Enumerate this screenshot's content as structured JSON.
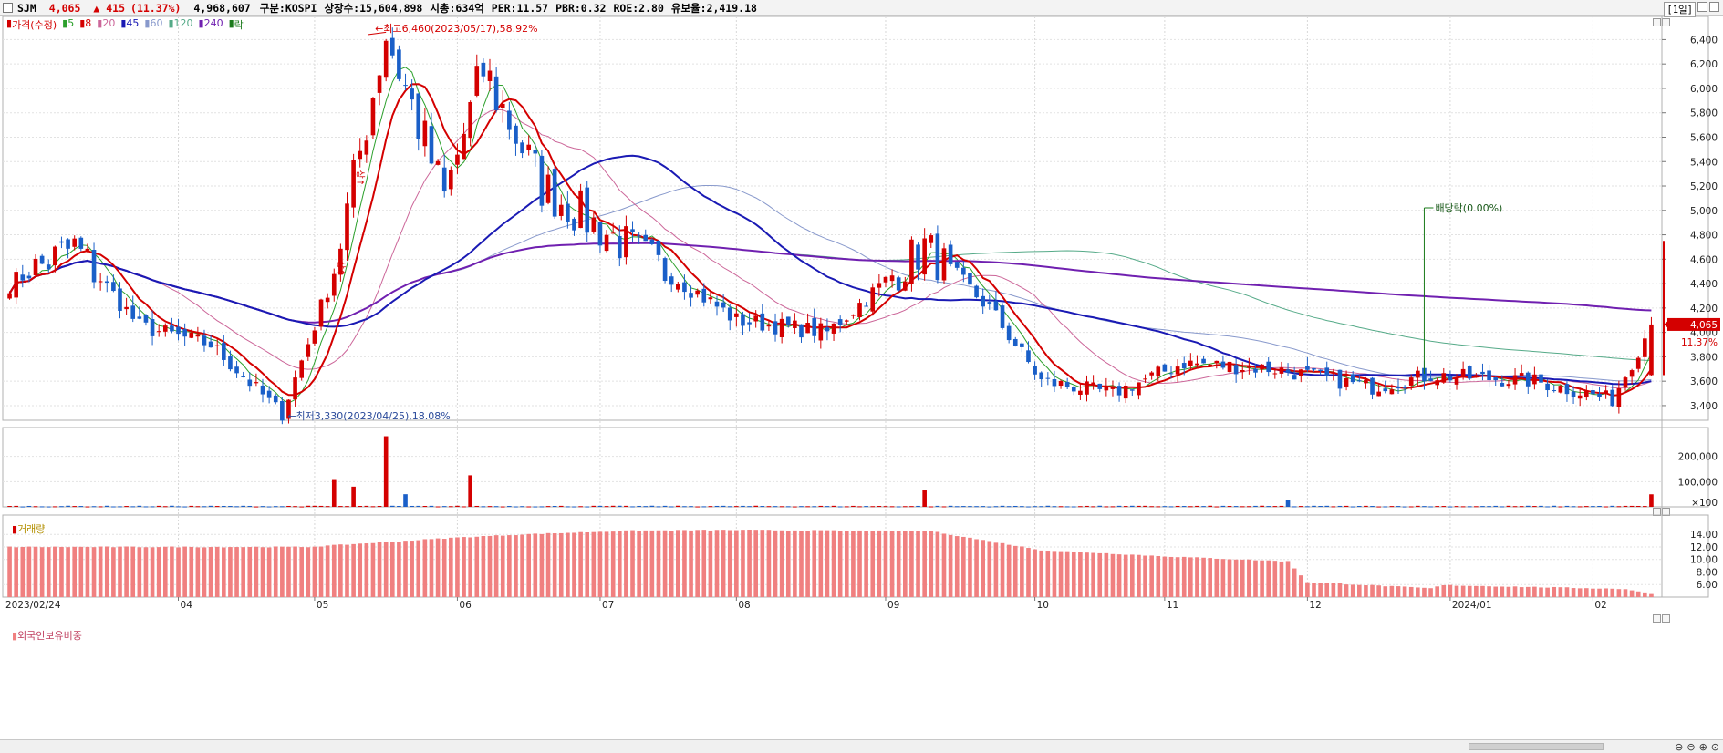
{
  "header": {
    "code": "SJM",
    "price": "4,065",
    "change": "▲ 415",
    "change_pct": "(11.37%)",
    "volume": "4,968,607",
    "market": "구분:KOSPI",
    "listed": "상장수:15,604,898",
    "mcap": "시총:634억",
    "per": "PER:11.57",
    "pbr": "PBR:0.32",
    "roe": "ROE:2.80",
    "reserve": "유보율:2,419.18",
    "period": "[1일]"
  },
  "legend": {
    "price": "가격(수정)",
    "ma5": "5",
    "ma8": "8",
    "ma20": "20",
    "ma45": "45",
    "ma60": "60",
    "ma120": "120",
    "ma240": "240",
    "drop": "락"
  },
  "annotations": {
    "high": "최고6,460(2023/05/17),58.92%",
    "low": "최저3,330(2023/04/25),18.08%",
    "dividend": "배당락(0.00%)",
    "limit_up": "상",
    "current_price": "4,065",
    "current_pct": "11.37%"
  },
  "volume_panel": {
    "title": "거래량"
  },
  "foreign_panel": {
    "title": "외국인보유비중"
  },
  "colors": {
    "up": "#d40000",
    "down": "#1a5fc8",
    "ma5": "#2ca02c",
    "ma8": "#d40000",
    "ma20": "#cc6699",
    "ma45": "#1a1ab4",
    "ma60": "#8899cc",
    "ma120": "#55aa88",
    "ma240": "#7020b0",
    "foreign": "#f08080"
  },
  "chart_data": [
    {
      "type": "candlestick",
      "title": "",
      "x_ticks": [
        "2023/02/24",
        "04",
        "05",
        "06",
        "07",
        "08",
        "09",
        "10",
        "11",
        "12",
        "2024/01",
        "02"
      ],
      "y_ticks": [
        "3,400",
        "3,600",
        "3,800",
        "4,000",
        "4,200",
        "4,400",
        "4,600",
        "4,800",
        "5,000",
        "5,200",
        "5,400",
        "5,600",
        "5,800",
        "6,000",
        "6,200",
        "6,400"
      ],
      "ylim": [
        3280,
        6560
      ],
      "series_summary": [
        {
          "x": "2023/02/24",
          "y": 4400
        },
        {
          "x": "2023/03/10",
          "y": 4700
        },
        {
          "x": "2023/03/24",
          "y": 4050
        },
        {
          "x": "2023/04/10",
          "y": 3900
        },
        {
          "x": "2023/04/25",
          "y": 3330
        },
        {
          "x": "2023/05/05",
          "y": 4500
        },
        {
          "x": "2023/05/17",
          "y": 6460
        },
        {
          "x": "2023/05/30",
          "y": 5100
        },
        {
          "x": "2023/06/07",
          "y": 6150
        },
        {
          "x": "2023/06/20",
          "y": 5200
        },
        {
          "x": "2023/07/03",
          "y": 4850
        },
        {
          "x": "2023/07/20",
          "y": 4400
        },
        {
          "x": "2023/08/01",
          "y": 4100
        },
        {
          "x": "2023/08/20",
          "y": 4000
        },
        {
          "x": "2023/09/11",
          "y": 4700
        },
        {
          "x": "2023/09/25",
          "y": 4200
        },
        {
          "x": "2023/10/05",
          "y": 3600
        },
        {
          "x": "2023/10/20",
          "y": 3500
        },
        {
          "x": "2023/11/05",
          "y": 3750
        },
        {
          "x": "2023/11/25",
          "y": 3700
        },
        {
          "x": "2023/12/15",
          "y": 3550
        },
        {
          "x": "2023/12/28",
          "y": 3650
        },
        {
          "x": "2024/01/20",
          "y": 3600
        },
        {
          "x": "2024/02/06",
          "y": 3450
        },
        {
          "x": "2024/02/14",
          "y": 4065
        }
      ],
      "highest": {
        "date": "2023/05/17",
        "value": 6460,
        "pct": 58.92
      },
      "lowest": {
        "date": "2023/04/25",
        "value": 3330,
        "pct": 18.08
      },
      "last_price": 4065
    },
    {
      "type": "bar",
      "title": "거래량",
      "y_ticks": [
        "200,000",
        "100,000",
        "×100"
      ],
      "ylim": [
        0,
        300000
      ],
      "spikes": [
        {
          "x": "2023/05/05",
          "value": 110000
        },
        {
          "x": "2023/05/10",
          "value": 80000
        },
        {
          "x": "2023/05/17",
          "value": 280000
        },
        {
          "x": "2023/05/22",
          "value": 50000
        },
        {
          "x": "2023/06/05",
          "value": 125000
        },
        {
          "x": "2023/09/11",
          "value": 65000
        },
        {
          "x": "2023/11/28",
          "value": 28000
        },
        {
          "x": "2024/02/14",
          "value": 49686
        }
      ]
    },
    {
      "type": "bar",
      "title": "외국인보유비중",
      "y_ticks": [
        "14.00",
        "12.00",
        "10.00",
        "8.00",
        "6.00"
      ],
      "ylim": [
        4,
        16.5
      ],
      "levels": [
        {
          "x": "2023/02/24",
          "y": 12.0
        },
        {
          "x": "2023/05/01",
          "y": 12.0
        },
        {
          "x": "2023/06/01",
          "y": 13.5
        },
        {
          "x": "2023/06/15",
          "y": 14.0
        },
        {
          "x": "2023/07/10",
          "y": 14.6
        },
        {
          "x": "2023/08/01",
          "y": 14.7
        },
        {
          "x": "2023/09/12",
          "y": 14.5
        },
        {
          "x": "2023/10/05",
          "y": 11.5
        },
        {
          "x": "2023/11/01",
          "y": 10.5
        },
        {
          "x": "2023/11/28",
          "y": 9.7
        },
        {
          "x": "2023/12/01",
          "y": 6.4
        },
        {
          "x": "2023/12/28",
          "y": 5.4
        },
        {
          "x": "2024/01/01",
          "y": 5.9
        },
        {
          "x": "2024/02/08",
          "y": 5.3
        },
        {
          "x": "2024/02/14",
          "y": 4.5
        }
      ]
    }
  ]
}
